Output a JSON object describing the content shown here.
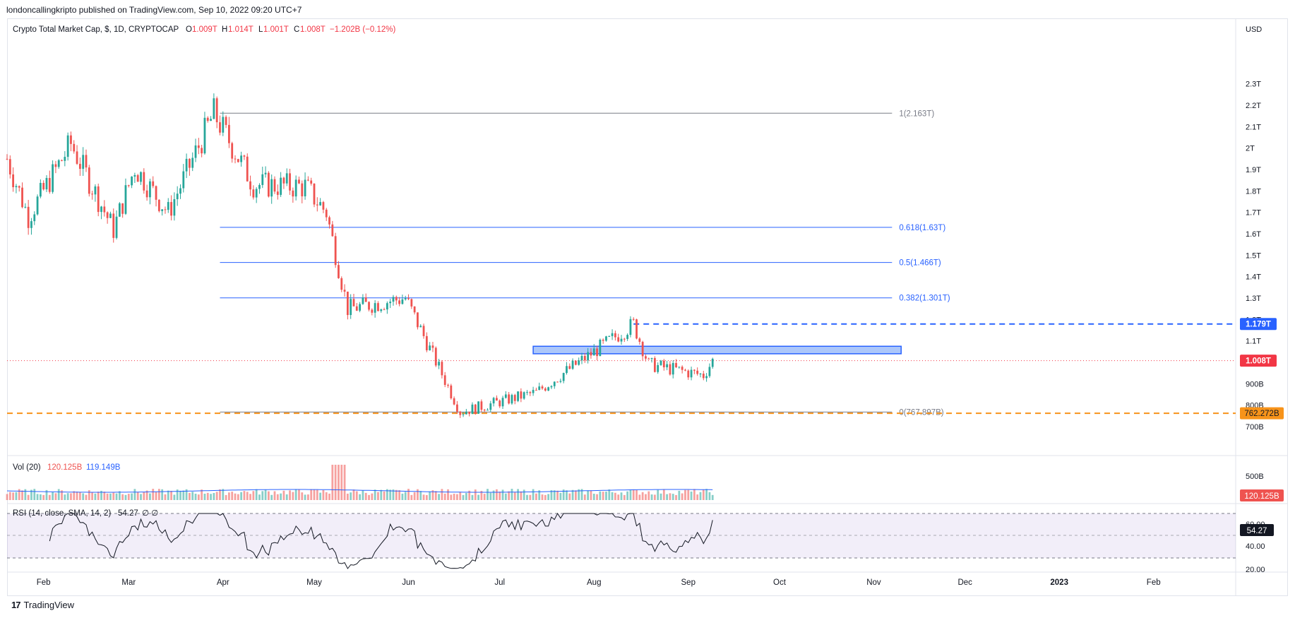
{
  "publisher_line": "londoncallingkripto published on TradingView.com, Sep 10, 2022 09:20 UTC+7",
  "footer": {
    "brand": "TradingView",
    "logo_glyph": "17"
  },
  "symbol_header": {
    "name": "Crypto Total Market Cap, $, 1D, CRYPTOCAP",
    "open_label": "O",
    "open": "1.009T",
    "high_label": "H",
    "high": "1.014T",
    "low_label": "L",
    "low": "1.001T",
    "close_label": "C",
    "close": "1.008T",
    "change": "−1.202B (−0.12%)"
  },
  "price_axis": {
    "currency": "USD",
    "ticks": [
      "2.3T",
      "2.2T",
      "2.1T",
      "2T",
      "1.9T",
      "1.8T",
      "1.7T",
      "1.6T",
      "1.5T",
      "1.4T",
      "1.3T",
      "1.2T",
      "1.1T",
      "900B",
      "800B",
      "700B"
    ],
    "badges": {
      "resistance": "1.179T",
      "last_price": "1.008T",
      "support": "762.272B"
    }
  },
  "fib_levels": [
    {
      "label": "1(2.163T)",
      "value": 2.163
    },
    {
      "label": "0.618(1.63T)",
      "value": 1.63
    },
    {
      "label": "0.5(1.466T)",
      "value": 1.466
    },
    {
      "label": "0.382(1.301T)",
      "value": 1.301
    },
    {
      "label": "0(767.897B)",
      "value": 0.7679
    }
  ],
  "volume_pane": {
    "label": "Vol (20)",
    "value1": "120.125B",
    "value2": "119.149B",
    "axis_tick": "500B",
    "badge": "120.125B"
  },
  "rsi_pane": {
    "label": "RSI (14, close, SMA, 14, 2)",
    "value": "54.27",
    "extra": "∅ ∅",
    "ticks": [
      "60.00",
      "40.00",
      "20.00"
    ],
    "badge": "54.27"
  },
  "time_axis": [
    "Feb",
    "Mar",
    "Apr",
    "May",
    "Jun",
    "Jul",
    "Aug",
    "Sep",
    "Oct",
    "Nov",
    "Dec",
    "2023",
    "Feb"
  ],
  "colors": {
    "up": "#26a69a",
    "down": "#ef5350",
    "fib_blue": "#2962ff",
    "fib_gray": "#787b86",
    "support_orange": "#f7931a",
    "last_price_red": "#f23645",
    "rsi_band": "#7e57c2",
    "zone_fill": "#90b4f8"
  },
  "chart_data": {
    "type": "candlestick",
    "title": "Crypto Total Market Cap, $, 1D, CRYPTOCAP",
    "y_unit": "USD (trillions)",
    "ylim": [
      0.68,
      2.36
    ],
    "x_range": [
      "2022-01-20",
      "2023-02-28"
    ],
    "grid": false,
    "monthly_path": [
      {
        "date": "2022-01-20",
        "close": 1.95
      },
      {
        "date": "2022-01-27",
        "close": 1.68
      },
      {
        "date": "2022-02-10",
        "close": 2.02
      },
      {
        "date": "2022-02-24",
        "close": 1.62
      },
      {
        "date": "2022-03-03",
        "close": 1.91
      },
      {
        "date": "2022-03-14",
        "close": 1.7
      },
      {
        "date": "2022-03-29",
        "close": 2.163
      },
      {
        "date": "2022-04-11",
        "close": 1.83
      },
      {
        "date": "2022-04-28",
        "close": 1.82
      },
      {
        "date": "2022-05-05",
        "close": 1.7
      },
      {
        "date": "2022-05-12",
        "close": 1.25
      },
      {
        "date": "2022-05-31",
        "close": 1.3
      },
      {
        "date": "2022-06-18",
        "close": 0.7679
      },
      {
        "date": "2022-07-13",
        "close": 0.86
      },
      {
        "date": "2022-08-14",
        "close": 1.179
      },
      {
        "date": "2022-08-19",
        "close": 0.99
      },
      {
        "date": "2022-09-06",
        "close": 0.94
      },
      {
        "date": "2022-09-09",
        "close": 1.008
      }
    ],
    "horizontal_levels": {
      "resistance_dashed": 1.179,
      "support_dashed": 0.762272,
      "last_price": 1.008
    },
    "zone": {
      "from": "2022-07-12",
      "to": "2022-11-10",
      "low": 1.04,
      "high": 1.075
    }
  }
}
